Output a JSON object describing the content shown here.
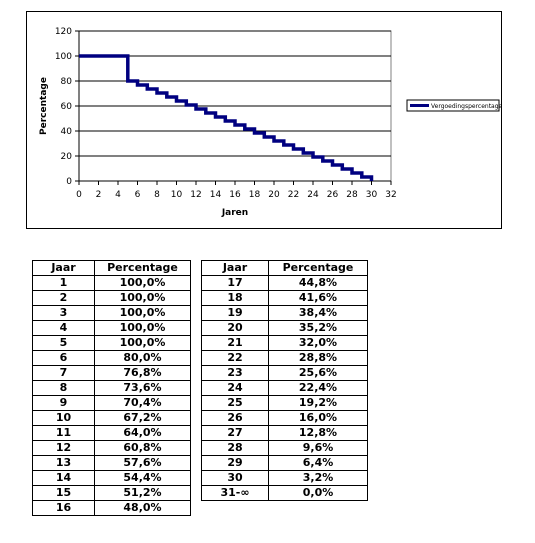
{
  "chart_data": {
    "type": "line",
    "step": true,
    "xlabel": "Jaren",
    "ylabel": "Percentage",
    "xlim": [
      0,
      32
    ],
    "ylim": [
      0,
      120
    ],
    "xticks": [
      0,
      2,
      4,
      6,
      8,
      10,
      12,
      14,
      16,
      18,
      20,
      22,
      24,
      26,
      28,
      30,
      32
    ],
    "yticks": [
      0,
      20,
      40,
      60,
      80,
      100,
      120
    ],
    "grid": "horizontal",
    "legend_position": "right",
    "series": [
      {
        "name": "Vergoedingspercentage",
        "color": "#000080",
        "x": [
          0,
          5,
          5,
          6,
          6,
          7,
          7,
          8,
          8,
          9,
          9,
          10,
          10,
          11,
          11,
          12,
          12,
          13,
          13,
          14,
          14,
          15,
          15,
          16,
          16,
          17,
          17,
          18,
          18,
          19,
          19,
          20,
          20,
          21,
          21,
          22,
          22,
          23,
          23,
          24,
          24,
          25,
          25,
          26,
          26,
          27,
          27,
          28,
          28,
          29,
          29,
          30,
          30
        ],
        "y": [
          100,
          100,
          80,
          80,
          76.8,
          76.8,
          73.6,
          73.6,
          70.4,
          70.4,
          67.2,
          67.2,
          64,
          64,
          60.8,
          60.8,
          57.6,
          57.6,
          54.4,
          54.4,
          51.2,
          51.2,
          48,
          48,
          44.8,
          44.8,
          41.6,
          41.6,
          38.4,
          38.4,
          35.2,
          35.2,
          32,
          32,
          28.8,
          28.8,
          25.6,
          25.6,
          22.4,
          22.4,
          19.2,
          19.2,
          16,
          16,
          12.8,
          12.8,
          9.6,
          9.6,
          6.4,
          6.4,
          3.2,
          3.2,
          0
        ]
      }
    ]
  },
  "tables": {
    "col_header_year": "Jaar",
    "col_header_pct": "Percentage",
    "left_rows": [
      [
        "1",
        "100,0%"
      ],
      [
        "2",
        "100,0%"
      ],
      [
        "3",
        "100,0%"
      ],
      [
        "4",
        "100,0%"
      ],
      [
        "5",
        "100,0%"
      ],
      [
        "6",
        "80,0%"
      ],
      [
        "7",
        "76,8%"
      ],
      [
        "8",
        "73,6%"
      ],
      [
        "9",
        "70,4%"
      ],
      [
        "10",
        "67,2%"
      ],
      [
        "11",
        "64,0%"
      ],
      [
        "12",
        "60,8%"
      ],
      [
        "13",
        "57,6%"
      ],
      [
        "14",
        "54,4%"
      ],
      [
        "15",
        "51,2%"
      ],
      [
        "16",
        "48,0%"
      ]
    ],
    "right_rows": [
      [
        "17",
        "44,8%"
      ],
      [
        "18",
        "41,6%"
      ],
      [
        "19",
        "38,4%"
      ],
      [
        "20",
        "35,2%"
      ],
      [
        "21",
        "32,0%"
      ],
      [
        "22",
        "28,8%"
      ],
      [
        "23",
        "25,6%"
      ],
      [
        "24",
        "22,4%"
      ],
      [
        "25",
        "19,2%"
      ],
      [
        "26",
        "16,0%"
      ],
      [
        "27",
        "12,8%"
      ],
      [
        "28",
        "9,6%"
      ],
      [
        "29",
        "6,4%"
      ],
      [
        "30",
        "3,2%"
      ],
      [
        "31-∞",
        "0,0%"
      ]
    ]
  }
}
